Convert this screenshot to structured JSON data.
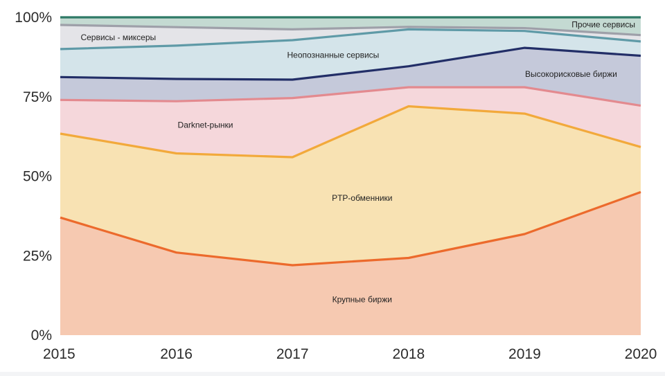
{
  "chart_data": {
    "type": "area",
    "stacked": true,
    "normalized": true,
    "title": "",
    "xlabel": "",
    "ylabel": "",
    "x": [
      2015,
      2016,
      2017,
      2018,
      2019,
      2020
    ],
    "x_tick_labels": [
      "2015",
      "2016",
      "2017",
      "2018",
      "2019",
      "2020"
    ],
    "y_ticks": [
      0,
      25,
      50,
      75,
      100
    ],
    "y_tick_labels": [
      "0%",
      "25%",
      "50%",
      "75%",
      "100%"
    ],
    "ylim": [
      0,
      100
    ],
    "grid": false,
    "legend": "none (labels placed inside bands)",
    "series": [
      {
        "name": "Крупные биржи",
        "values": [
          37,
          26,
          22,
          24.3,
          31.8,
          45
        ],
        "fill": "#f6c9b1",
        "line": "#ec6a2c"
      },
      {
        "name": "PTP-обменники",
        "values": [
          26.4,
          31.2,
          34,
          47.7,
          37.9,
          14.2
        ],
        "fill": "#f8e2b3",
        "line": "#f2a93b"
      },
      {
        "name": "Darknet-рынки",
        "values": [
          10.6,
          16.4,
          18.6,
          6,
          8.3,
          13
        ],
        "fill": "#f5d7db",
        "line": "#e38a8f"
      },
      {
        "name": "Высокорисковые биржи",
        "values": [
          7.2,
          7,
          5.8,
          6.6,
          12.4,
          15.7
        ],
        "fill": "#c5c9da",
        "line": "#222e67"
      },
      {
        "name": "Неопознанные сервисы",
        "values": [
          8.8,
          10.5,
          12.4,
          11.6,
          5.3,
          4.5
        ],
        "fill": "#d4e4ea",
        "line": "#5f9aa7"
      },
      {
        "name": "Сервисы - миксеры",
        "values": [
          7.6,
          5.8,
          3.4,
          0.8,
          0.9,
          2
        ],
        "fill": "#e4e4e8",
        "line": "#9ea0a9"
      },
      {
        "name": "Прочие сервисы",
        "values": [
          2.4,
          3.1,
          3.8,
          3,
          3.4,
          5.6
        ],
        "fill": "#c4dad2",
        "line": "#2f7a66"
      }
    ],
    "band_labels": [
      {
        "text": "Крупные биржи",
        "series": 0,
        "x": 2017.6,
        "y": 11
      },
      {
        "text": "PTP-обменники",
        "series": 1,
        "x": 2017.6,
        "y": 43
      },
      {
        "text": "Darknet-рынки",
        "series": 2,
        "x": 2016.25,
        "y": 66
      },
      {
        "text": "Высокорисковые биржи",
        "series": 3,
        "x": 2019.4,
        "y": 82
      },
      {
        "text": "Неопознанные сервисы",
        "series": 4,
        "x": 2017.35,
        "y": 88
      },
      {
        "text": "Сервисы - миксеры",
        "series": 5,
        "x": 2015.5,
        "y": 93.5
      },
      {
        "text": "Прочие сервисы",
        "series": 6,
        "x": 2020,
        "y": 97.5
      }
    ]
  }
}
